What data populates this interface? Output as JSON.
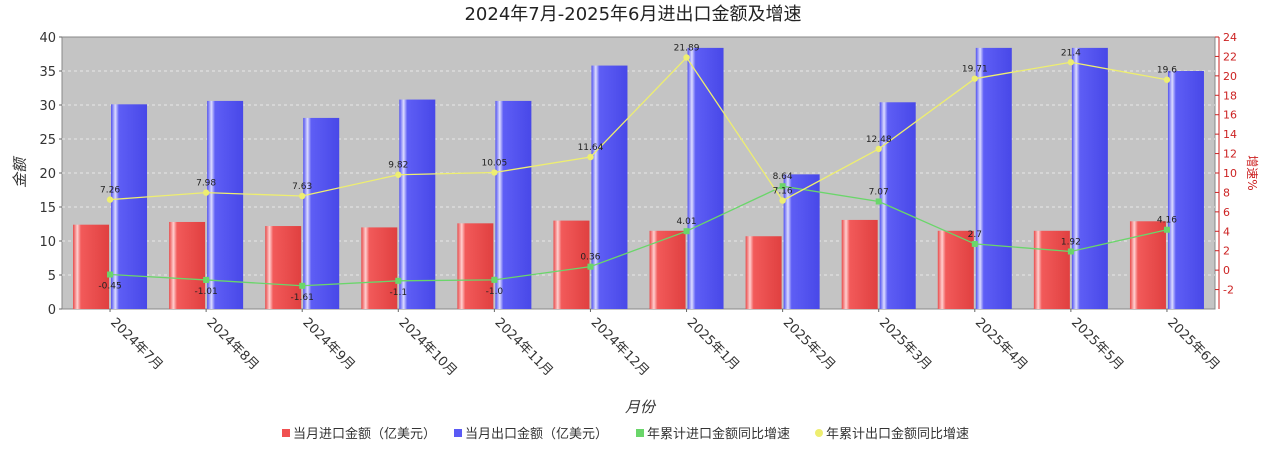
{
  "chart_data": {
    "type": "bar",
    "title": "2024年7月-2025年6月进出口金额及增速",
    "xlabel": "月份",
    "ylabel": "金额",
    "y2label": "增速%",
    "ylim": [
      0,
      40
    ],
    "yticks": [
      0,
      5,
      10,
      15,
      20,
      25,
      30,
      35,
      40
    ],
    "y2lim": [
      -4,
      24
    ],
    "y2ticks": [
      -2,
      0,
      2,
      4,
      6,
      8,
      10,
      12,
      14,
      16,
      18,
      20,
      22,
      24
    ],
    "categories": [
      "2024年7月",
      "2024年8月",
      "2024年9月",
      "2024年10月",
      "2024年11月",
      "2024年12月",
      "2025年1月",
      "2025年2月",
      "2025年3月",
      "2025年4月",
      "2025年5月",
      "2025年6月"
    ],
    "series": [
      {
        "name": "当月进口金额（亿美元）",
        "kind": "bar",
        "axis": "left",
        "color": "#f05050",
        "values": [
          12.4,
          12.8,
          12.2,
          12.0,
          12.6,
          13.0,
          11.5,
          10.7,
          13.1,
          11.5,
          11.5,
          12.9
        ]
      },
      {
        "name": "当月出口金额（亿美元）",
        "kind": "bar",
        "axis": "left",
        "color": "#5a5af5",
        "values": [
          30.1,
          30.6,
          28.1,
          30.8,
          30.6,
          35.8,
          38.4,
          19.8,
          30.4,
          38.4,
          38.4,
          35.0
        ]
      },
      {
        "name": "年累计进口金额同比增速",
        "kind": "line",
        "axis": "right",
        "color": "#6ad66a",
        "values": [
          -0.45,
          -1.01,
          -1.61,
          -1.1,
          -1.0,
          0.36,
          4.01,
          8.64,
          7.07,
          2.7,
          1.92,
          4.16
        ],
        "labels": [
          "-0.45",
          "-1.01",
          "-1.61",
          "-1.1",
          "-1.0",
          "0.36",
          "4.01",
          "8.64",
          "7.07",
          "2.7",
          "1.92",
          "4.16"
        ]
      },
      {
        "name": "年累计出口金额同比增速",
        "kind": "line",
        "axis": "right",
        "color": "#eeee70",
        "values": [
          7.26,
          7.98,
          7.63,
          9.82,
          10.05,
          11.64,
          21.89,
          7.16,
          12.48,
          19.71,
          21.4,
          19.6
        ],
        "labels": [
          "7.26",
          "7.98",
          "7.63",
          "9.82",
          "10.05",
          "11.64",
          "21.89",
          "7.16",
          "12.48",
          "19.71",
          "21.4",
          "19.6"
        ]
      }
    ],
    "legend_position": "bottom",
    "grid": true
  }
}
